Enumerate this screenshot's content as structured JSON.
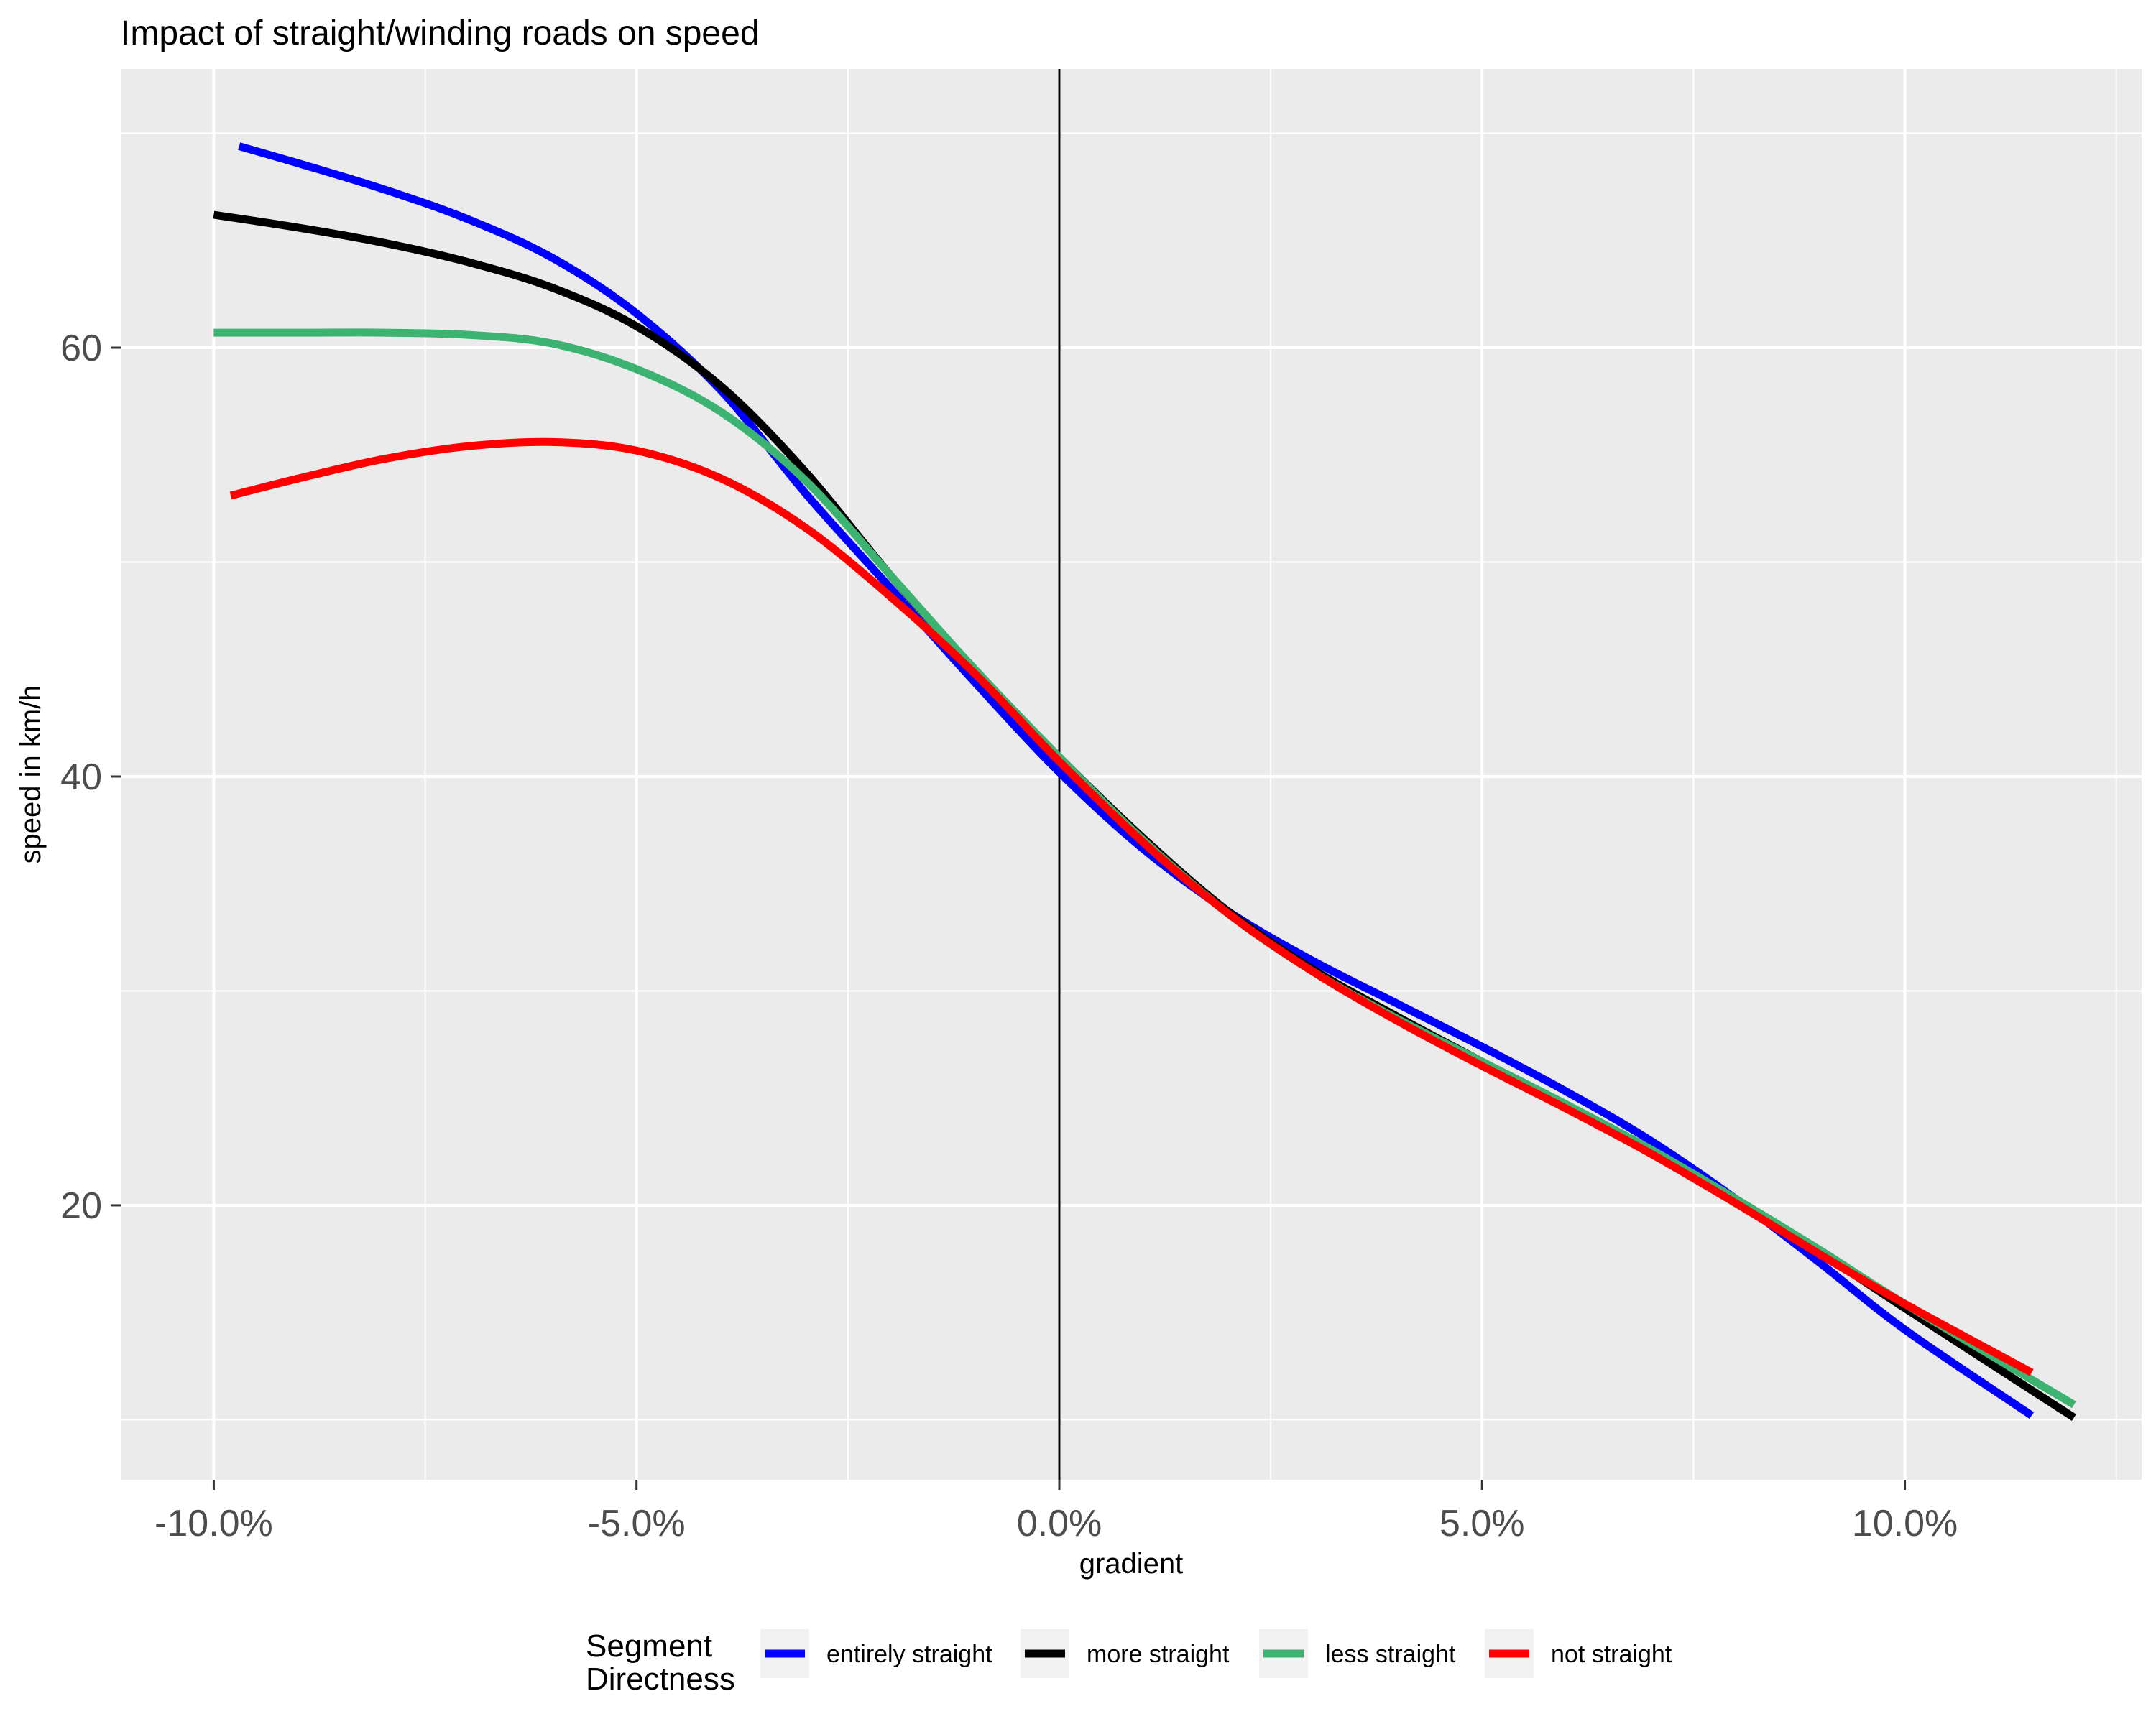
{
  "chart_data": {
    "type": "line",
    "title": "Impact of straight/winding roads on speed",
    "xlabel": "gradient",
    "ylabel": "speed in km/h",
    "xlim": [
      -0.111,
      0.128
    ],
    "ylim": [
      7.2,
      73
    ],
    "x_ticks": [
      -0.1,
      -0.05,
      0.0,
      0.05,
      0.1
    ],
    "x_tick_labels": [
      "-10.0%",
      "-5.0%",
      "0.0%",
      "5.0%",
      "10.0%"
    ],
    "y_ticks": [
      20,
      40,
      60
    ],
    "y_tick_labels": [
      "20",
      "40",
      "60"
    ],
    "grid": true,
    "vline_x": 0.0,
    "legend": {
      "position": "bottom",
      "title_lines": [
        "Segment",
        "Directness"
      ]
    },
    "series": [
      {
        "name": "entirely straight",
        "color": "#0000FF",
        "points": [
          [
            -0.097,
            69.4
          ],
          [
            -0.09,
            68.6
          ],
          [
            -0.08,
            67.4
          ],
          [
            -0.07,
            66.0
          ],
          [
            -0.06,
            64.2
          ],
          [
            -0.05,
            61.6
          ],
          [
            -0.04,
            58.0
          ],
          [
            -0.03,
            53.2
          ],
          [
            -0.02,
            48.8
          ],
          [
            -0.01,
            44.4
          ],
          [
            0.0,
            40.2
          ],
          [
            0.01,
            36.6
          ],
          [
            0.02,
            33.7
          ],
          [
            0.03,
            31.4
          ],
          [
            0.04,
            29.4
          ],
          [
            0.05,
            27.4
          ],
          [
            0.06,
            25.3
          ],
          [
            0.07,
            23.0
          ],
          [
            0.08,
            20.3
          ],
          [
            0.09,
            17.3
          ],
          [
            0.1,
            14.2
          ],
          [
            0.115,
            10.2
          ]
        ]
      },
      {
        "name": "more straight",
        "color": "#000000",
        "points": [
          [
            -0.1,
            66.2
          ],
          [
            -0.09,
            65.6
          ],
          [
            -0.08,
            64.9
          ],
          [
            -0.07,
            64.0
          ],
          [
            -0.06,
            62.8
          ],
          [
            -0.05,
            61.0
          ],
          [
            -0.04,
            58.2
          ],
          [
            -0.03,
            54.2
          ],
          [
            -0.02,
            49.4
          ],
          [
            -0.01,
            45.0
          ],
          [
            0.0,
            40.9
          ],
          [
            0.01,
            37.1
          ],
          [
            0.02,
            33.7
          ],
          [
            0.03,
            31.0
          ],
          [
            0.04,
            28.8
          ],
          [
            0.05,
            26.7
          ],
          [
            0.06,
            24.6
          ],
          [
            0.07,
            22.5
          ],
          [
            0.08,
            20.2
          ],
          [
            0.09,
            17.8
          ],
          [
            0.1,
            15.2
          ],
          [
            0.12,
            10.1
          ]
        ]
      },
      {
        "name": "less straight",
        "color": "#3CB371",
        "points": [
          [
            -0.1,
            60.7
          ],
          [
            -0.09,
            60.7
          ],
          [
            -0.08,
            60.7
          ],
          [
            -0.07,
            60.6
          ],
          [
            -0.06,
            60.2
          ],
          [
            -0.05,
            59.0
          ],
          [
            -0.04,
            57.0
          ],
          [
            -0.03,
            53.8
          ],
          [
            -0.02,
            49.4
          ],
          [
            -0.01,
            45.0
          ],
          [
            0.0,
            40.9
          ],
          [
            0.01,
            37.0
          ],
          [
            0.02,
            33.6
          ],
          [
            0.03,
            30.9
          ],
          [
            0.04,
            28.7
          ],
          [
            0.05,
            26.7
          ],
          [
            0.06,
            24.7
          ],
          [
            0.07,
            22.6
          ],
          [
            0.08,
            20.3
          ],
          [
            0.09,
            17.9
          ],
          [
            0.1,
            15.4
          ],
          [
            0.12,
            10.7
          ]
        ]
      },
      {
        "name": "not straight",
        "color": "#FF0000",
        "points": [
          [
            -0.098,
            53.1
          ],
          [
            -0.09,
            53.9
          ],
          [
            -0.08,
            54.8
          ],
          [
            -0.07,
            55.4
          ],
          [
            -0.06,
            55.6
          ],
          [
            -0.05,
            55.2
          ],
          [
            -0.04,
            53.9
          ],
          [
            -0.03,
            51.6
          ],
          [
            -0.02,
            48.4
          ],
          [
            -0.01,
            44.8
          ],
          [
            0.0,
            40.7
          ],
          [
            0.01,
            36.9
          ],
          [
            0.02,
            33.6
          ],
          [
            0.03,
            30.9
          ],
          [
            0.04,
            28.6
          ],
          [
            0.05,
            26.5
          ],
          [
            0.06,
            24.5
          ],
          [
            0.07,
            22.4
          ],
          [
            0.08,
            20.1
          ],
          [
            0.09,
            17.7
          ],
          [
            0.1,
            15.4
          ],
          [
            0.115,
            12.2
          ]
        ]
      }
    ]
  }
}
